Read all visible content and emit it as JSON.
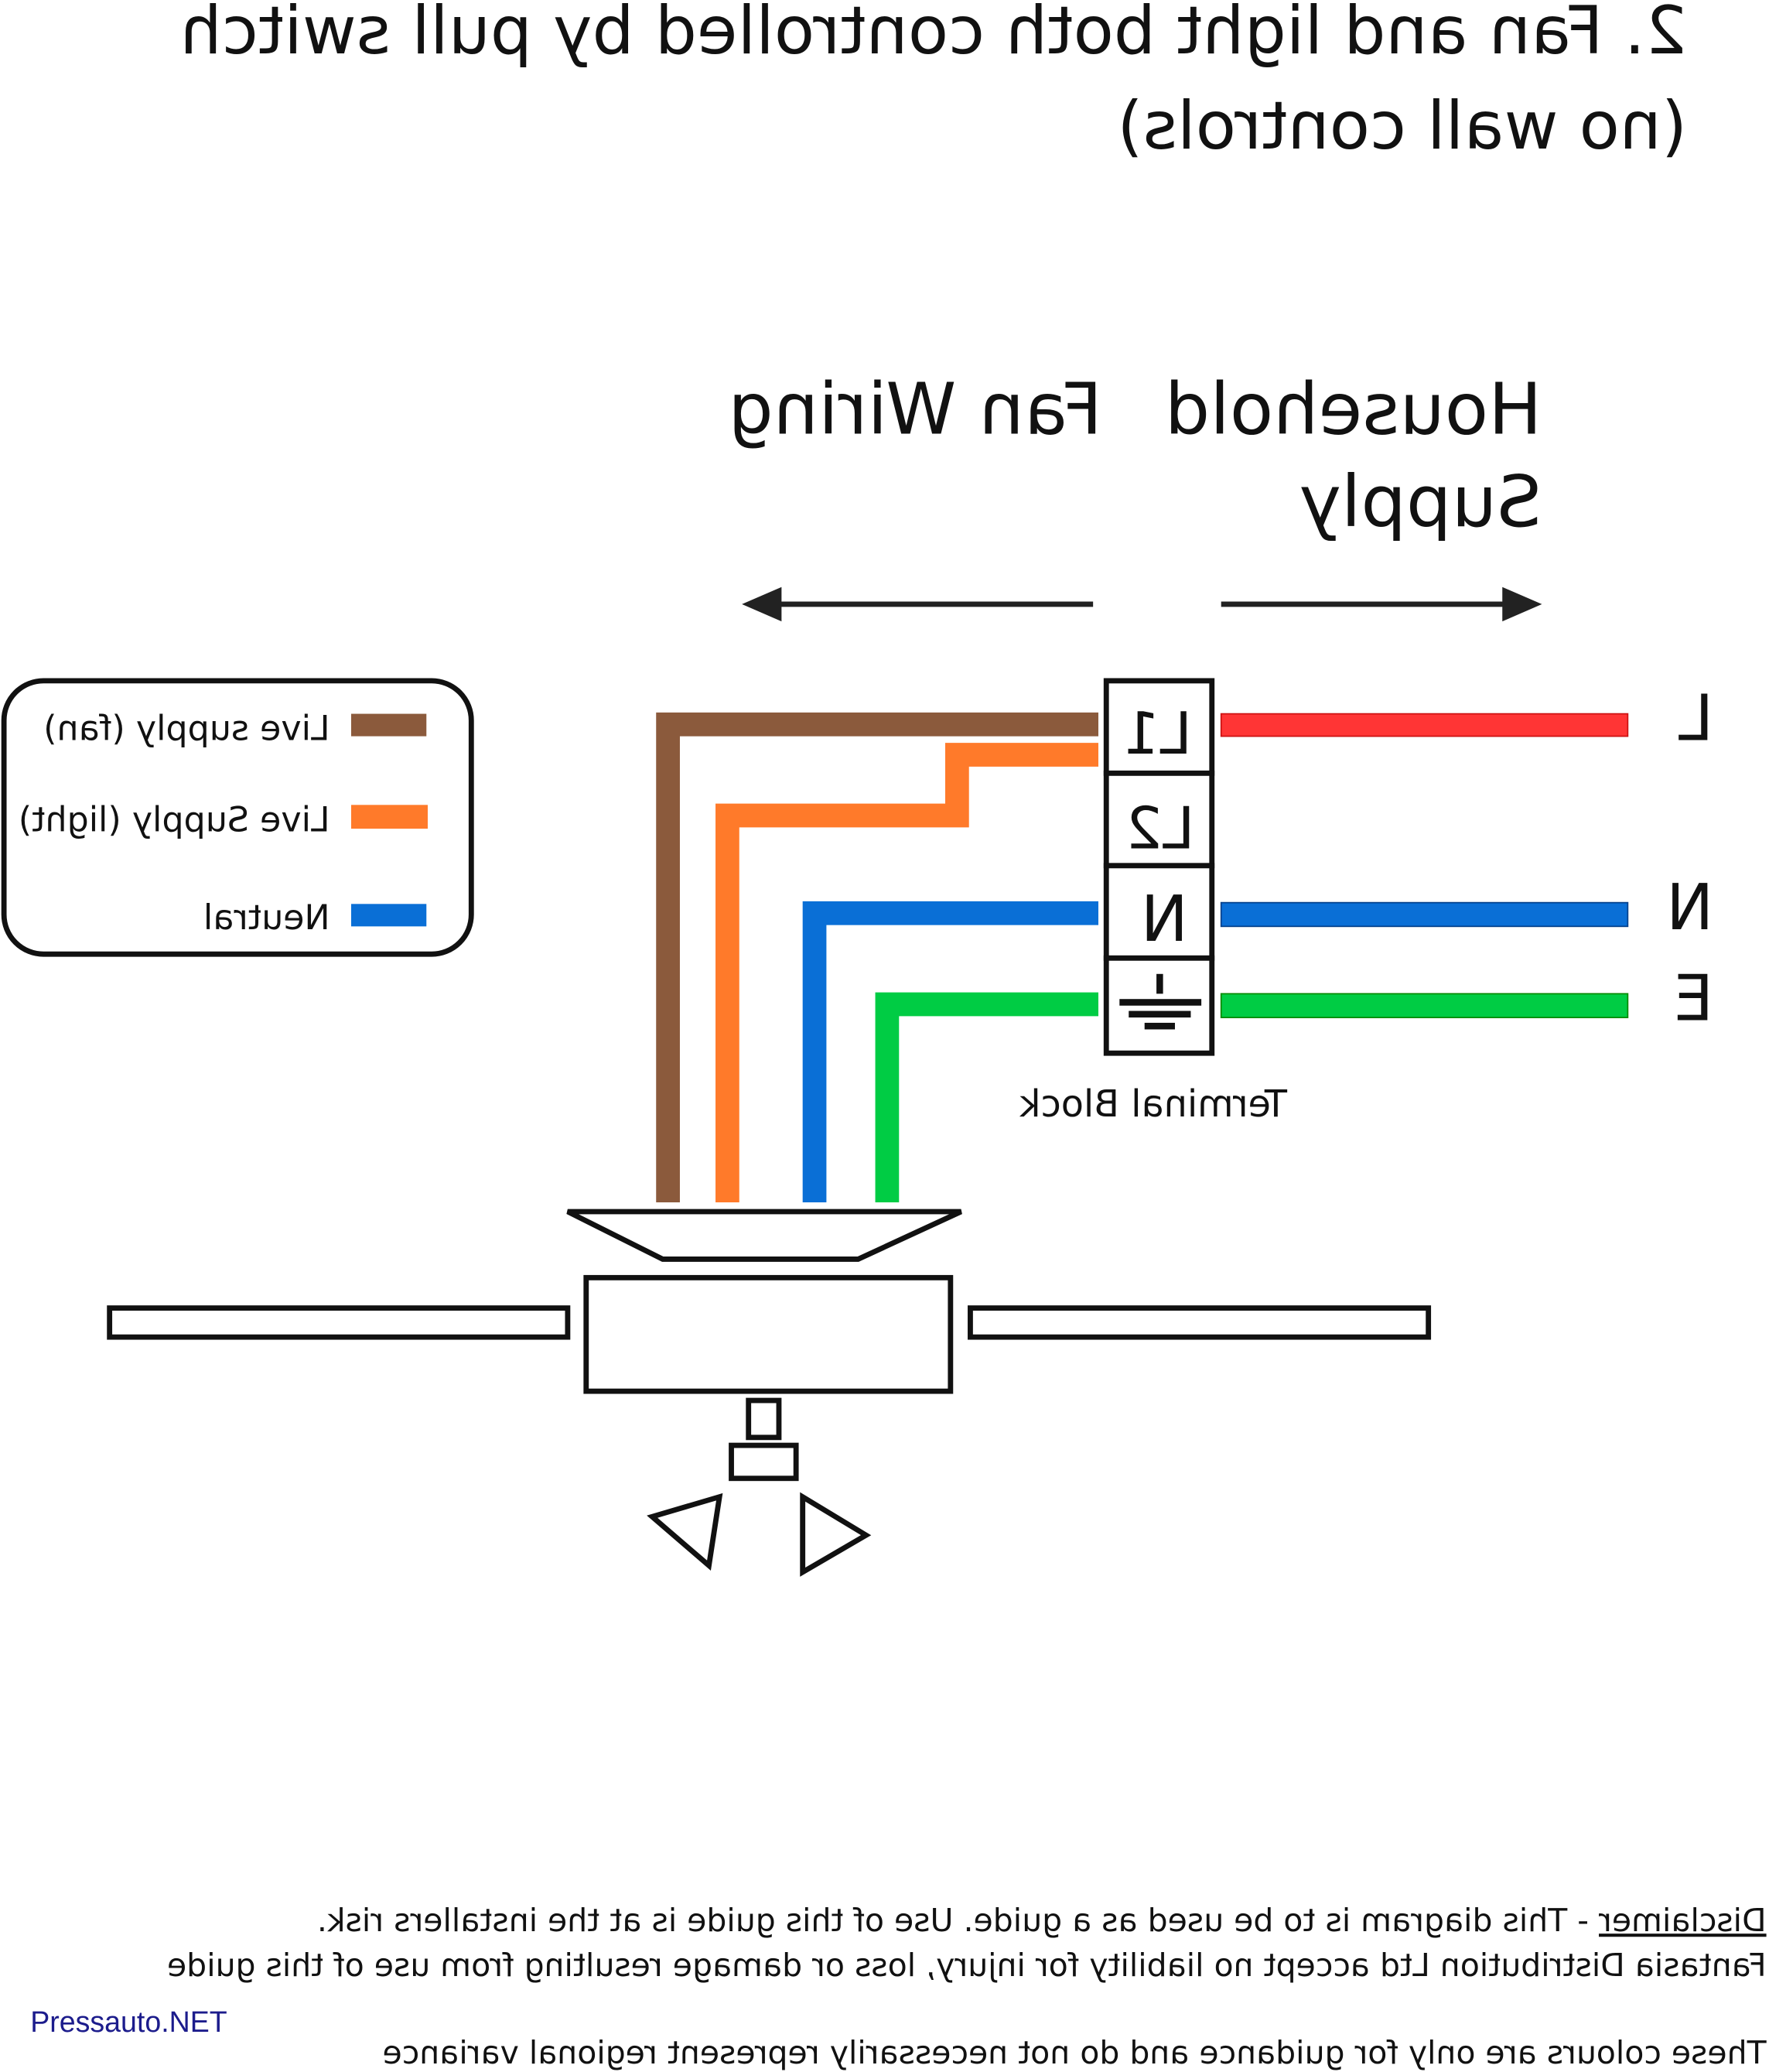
{
  "title": {
    "line1": "2. Fan and light both controlled by pull switch",
    "line2": "(no wall controls)"
  },
  "sections": {
    "household_line1": "Household",
    "household_line2": "Supply",
    "fan_wiring": "Fan Wiring"
  },
  "terminal_block": {
    "label": "Terminal Block",
    "terminals": [
      "L1",
      "L2",
      "N"
    ],
    "earth_icon": "earth-ground-icon"
  },
  "supply_labels": [
    "L",
    "N",
    "E"
  ],
  "legend": [
    {
      "label": "Live supply (fan)",
      "color": "#8b5a3c"
    },
    {
      "label": "Live Supply (light)",
      "color": "#ff7a2a"
    },
    {
      "label": "Neutral",
      "color": "#0a6fd6"
    }
  ],
  "colors": {
    "live_supply": "#ff3535",
    "neutral": "#0a6fd6",
    "earth": "#00cc44",
    "fan_live": "#8b5a3c",
    "light_live": "#ff7a2a"
  },
  "footer": {
    "disclaimer_word": "Disclaimer",
    "disclaimer_rest": " - This diagram is to be used as a guide.  Use of this guide is at the installers risk.",
    "line2": "Fantasia Distribution Ltd accept no liability for injury, loss or damage resulting from use of this guide",
    "line3": "These colours are only for guidance and do not necessarily represent regional variance"
  },
  "watermark": "Pressauto.NET",
  "mirrored": true
}
